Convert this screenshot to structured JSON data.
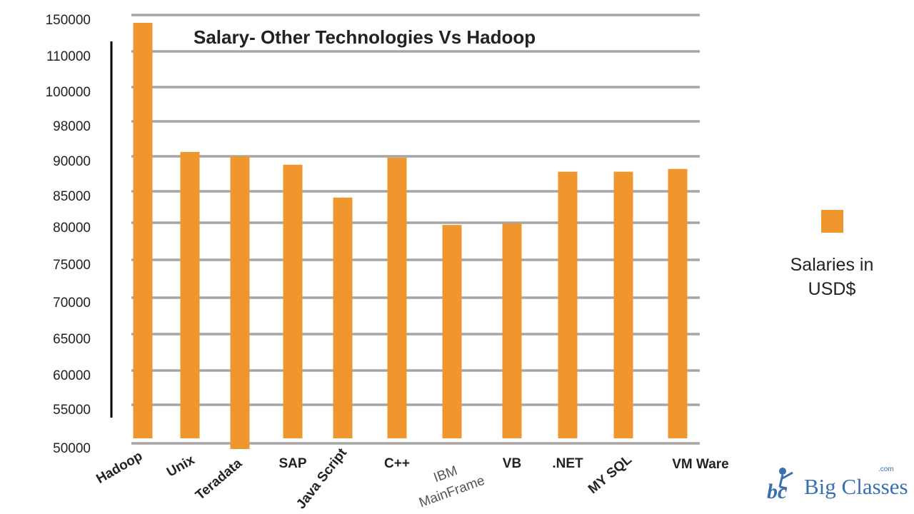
{
  "chart_data": {
    "type": "bar",
    "title": "Salary- Other Technologies Vs Hadoop",
    "categories": [
      "Hadoop",
      "Unix",
      "Teradata",
      "SAP",
      "Java Script",
      "C++",
      "IBM MainFrame",
      "VB",
      ".NET",
      "MY SQL",
      "VM Ware"
    ],
    "category_label_lines": [
      [
        "Hadoop"
      ],
      [
        "Unix"
      ],
      [
        "Teradata"
      ],
      [
        "SAP"
      ],
      [
        "Java Script"
      ],
      [
        "C++"
      ],
      [
        "IBM",
        "MainFrame"
      ],
      [
        "VB"
      ],
      [
        ".NET"
      ],
      [
        "MY SQL"
      ],
      [
        "VM Ware"
      ]
    ],
    "series": [
      {
        "name": "Salaries in USD$",
        "values": [
          150000,
          91000,
          90000,
          88800,
          84000,
          89800,
          79700,
          79900,
          87800,
          87800,
          88200
        ]
      }
    ],
    "y_ticks": [
      50000,
      55000,
      60000,
      65000,
      70000,
      75000,
      80000,
      85000,
      90000,
      98000,
      100000,
      110000,
      150000
    ],
    "ylim": [
      50000,
      150000
    ],
    "y_scale": "non-linear (unevenly spaced tick values)",
    "grid": true,
    "legend_position": "right",
    "colors": {
      "bar": "#f0962e",
      "grid": "#a6a6a6",
      "axis": "#000000"
    }
  },
  "legend": {
    "label": "Salaries in USD$"
  },
  "logo": {
    "brand": "Big Classes",
    "suffix": ".com"
  }
}
